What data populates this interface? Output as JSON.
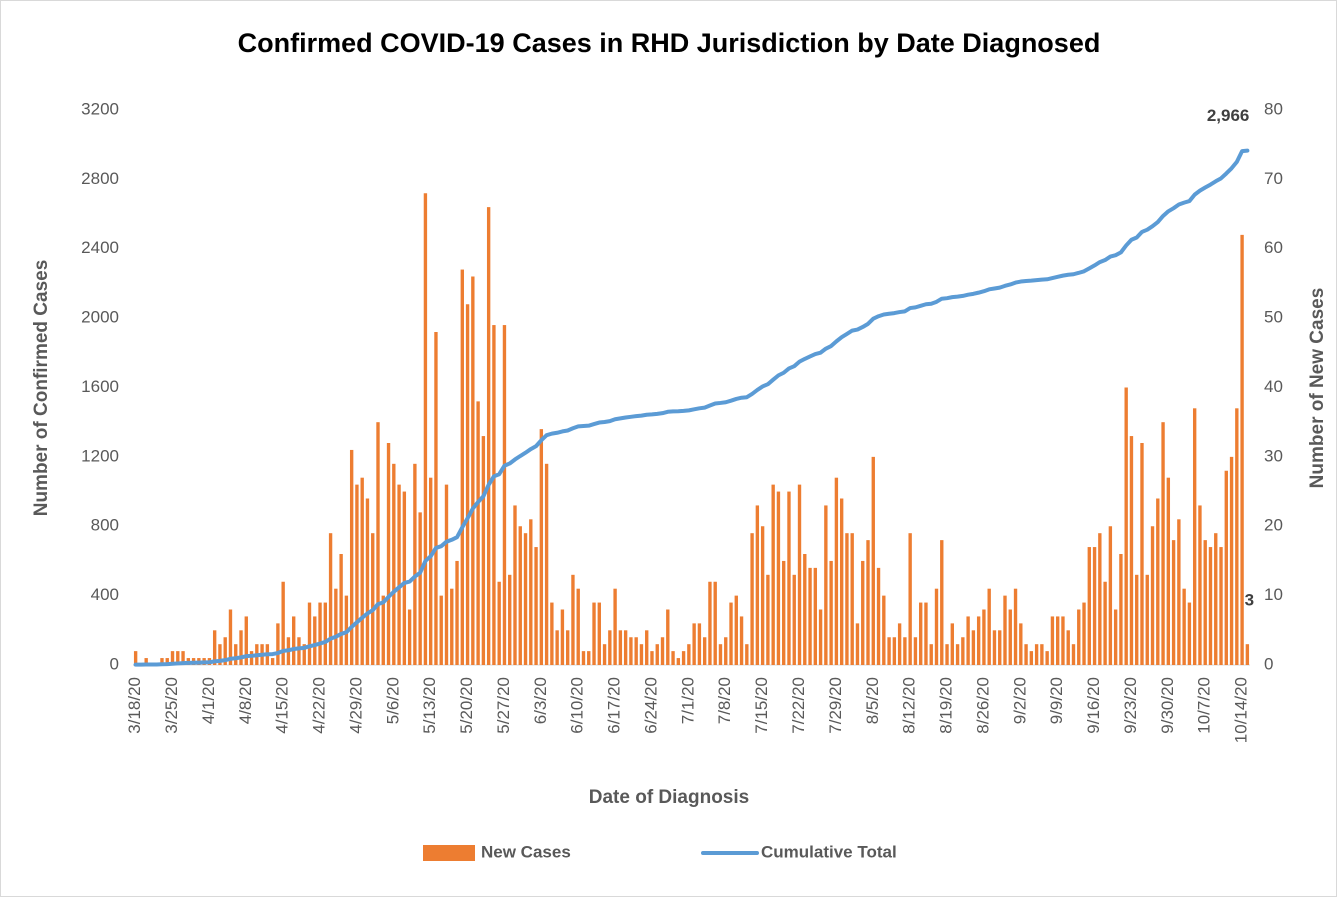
{
  "chart_data": {
    "type": "bar_line",
    "title": "Confirmed COVID-19 Cases in RHD Jurisdiction by Date Diagnosed",
    "x_label": "Date of Diagnosis",
    "y_label": "Number of Confirmed Cases",
    "y2_label": "Number of New Cases",
    "categories": [
      "3/18/20",
      null,
      null,
      null,
      null,
      null,
      null,
      "3/25/20",
      null,
      null,
      null,
      null,
      null,
      null,
      "4/1/20",
      null,
      null,
      null,
      null,
      null,
      null,
      "4/8/20",
      null,
      null,
      null,
      null,
      null,
      null,
      "4/15/20",
      null,
      null,
      null,
      null,
      null,
      null,
      "4/22/20",
      null,
      null,
      null,
      null,
      null,
      null,
      "4/29/20",
      null,
      null,
      null,
      null,
      null,
      null,
      "5/6/20",
      null,
      null,
      null,
      null,
      null,
      null,
      "5/13/20",
      null,
      null,
      null,
      null,
      null,
      null,
      "5/20/20",
      null,
      null,
      null,
      null,
      null,
      null,
      "5/27/20",
      null,
      null,
      null,
      null,
      null,
      null,
      "6/3/20",
      null,
      null,
      null,
      null,
      null,
      null,
      "6/10/20",
      null,
      null,
      null,
      null,
      null,
      null,
      "6/17/20",
      null,
      null,
      null,
      null,
      null,
      null,
      "6/24/20",
      null,
      null,
      null,
      null,
      null,
      null,
      "7/1/20",
      null,
      null,
      null,
      null,
      null,
      null,
      "7/8/20",
      null,
      null,
      null,
      null,
      null,
      null,
      "7/15/20",
      null,
      null,
      null,
      null,
      null,
      null,
      "7/22/20",
      null,
      null,
      null,
      null,
      null,
      null,
      "7/29/20",
      null,
      null,
      null,
      null,
      null,
      null,
      "8/5/20",
      null,
      null,
      null,
      null,
      null,
      null,
      "8/12/20",
      null,
      null,
      null,
      null,
      null,
      null,
      "8/19/20",
      null,
      null,
      null,
      null,
      null,
      null,
      "8/26/20",
      null,
      null,
      null,
      null,
      null,
      null,
      "9/2/20",
      null,
      null,
      null,
      null,
      null,
      null,
      "9/9/20",
      null,
      null,
      null,
      null,
      null,
      null,
      "9/16/20",
      null,
      null,
      null,
      null,
      null,
      null,
      "9/23/20",
      null,
      null,
      null,
      null,
      null,
      null,
      "9/30/20",
      null,
      null,
      null,
      null,
      null,
      null,
      "10/7/20",
      null,
      null,
      null,
      null,
      null,
      null,
      "10/14/20",
      null
    ],
    "series": [
      {
        "name": "New Cases",
        "type": "bar",
        "axis": "y2",
        "color": "#ed7d31",
        "data_label": "last",
        "values": [
          2,
          0,
          1,
          0,
          0,
          1,
          1,
          2,
          2,
          2,
          1,
          1,
          1,
          1,
          1,
          5,
          3,
          4,
          8,
          3,
          5,
          7,
          2,
          3,
          3,
          3,
          1,
          6,
          12,
          4,
          7,
          4,
          3,
          9,
          7,
          9,
          9,
          19,
          11,
          16,
          10,
          31,
          26,
          27,
          24,
          19,
          35,
          10,
          32,
          29,
          26,
          25,
          8,
          29,
          22,
          68,
          27,
          48,
          10,
          26,
          11,
          15,
          57,
          52,
          56,
          38,
          33,
          66,
          49,
          12,
          49,
          13,
          23,
          20,
          19,
          21,
          17,
          34,
          29,
          9,
          5,
          8,
          5,
          13,
          11,
          2,
          2,
          9,
          9,
          3,
          5,
          11,
          5,
          5,
          4,
          4,
          3,
          5,
          2,
          3,
          4,
          8,
          2,
          1,
          2,
          3,
          6,
          6,
          4,
          12,
          12,
          3,
          4,
          9,
          10,
          7,
          3,
          19,
          23,
          20,
          13,
          26,
          25,
          15,
          25,
          13,
          26,
          16,
          14,
          14,
          8,
          23,
          15,
          27,
          24,
          19,
          19,
          6,
          15,
          18,
          30,
          14,
          10,
          4,
          4,
          6,
          4,
          19,
          4,
          9,
          9,
          3,
          11,
          18,
          3,
          6,
          3,
          4,
          7,
          5,
          7,
          8,
          11,
          5,
          5,
          10,
          8,
          11,
          6,
          3,
          2,
          3,
          3,
          2,
          7,
          7,
          7,
          5,
          3,
          8,
          9,
          17,
          17,
          19,
          12,
          20,
          8,
          16,
          40,
          33,
          13,
          32,
          13,
          20,
          24,
          35,
          27,
          18,
          21,
          11,
          9,
          37,
          23,
          18,
          17,
          19,
          17,
          28,
          30,
          37,
          62,
          3
        ]
      },
      {
        "name": "Cumulative Total",
        "type": "line",
        "axis": "y",
        "color": "#5b9bd5",
        "values": [
          2,
          2,
          3,
          3,
          3,
          4,
          5,
          7,
          9,
          11,
          12,
          13,
          14,
          15,
          16,
          21,
          24,
          28,
          36,
          39,
          44,
          51,
          53,
          56,
          59,
          62,
          63,
          69,
          81,
          85,
          92,
          96,
          99,
          108,
          115,
          124,
          133,
          152,
          163,
          179,
          189,
          220,
          246,
          273,
          297,
          316,
          351,
          361,
          393,
          422,
          448,
          473,
          481,
          510,
          532,
          600,
          627,
          675,
          685,
          711,
          722,
          737,
          794,
          846,
          902,
          940,
          973,
          1039,
          1088,
          1100,
          1149,
          1162,
          1185,
          1205,
          1224,
          1245,
          1262,
          1296,
          1325,
          1334,
          1339,
          1347,
          1352,
          1365,
          1376,
          1378,
          1380,
          1389,
          1398,
          1401,
          1406,
          1417,
          1422,
          1427,
          1431,
          1435,
          1438,
          1443,
          1445,
          1448,
          1452,
          1460,
          1462,
          1463,
          1465,
          1468,
          1474,
          1480,
          1484,
          1496,
          1508,
          1511,
          1515,
          1524,
          1534,
          1541,
          1544,
          1563,
          1586,
          1606,
          1619,
          1645,
          1670,
          1685,
          1710,
          1723,
          1749,
          1765,
          1779,
          1793,
          1801,
          1824,
          1839,
          1866,
          1890,
          1909,
          1928,
          1934,
          1949,
          1967,
          1997,
          2011,
          2021,
          2025,
          2029,
          2035,
          2039,
          2058,
          2062,
          2071,
          2080,
          2083,
          2094,
          2112,
          2115,
          2121,
          2124,
          2128,
          2135,
          2140,
          2147,
          2155,
          2166,
          2171,
          2176,
          2186,
          2194,
          2205,
          2211,
          2214,
          2216,
          2219,
          2222,
          2224,
          2231,
          2238,
          2245,
          2250,
          2253,
          2261,
          2270,
          2287,
          2304,
          2323,
          2335,
          2355,
          2363,
          2379,
          2419,
          2452,
          2465,
          2497,
          2510,
          2530,
          2554,
          2589,
          2616,
          2634,
          2655,
          2666,
          2675,
          2712,
          2735,
          2753,
          2770,
          2789,
          2806,
          2834,
          2864,
          2901,
          2963,
          2966
        ],
        "value_labels": [
          null,
          null,
          null,
          null,
          null,
          null,
          null,
          null,
          null,
          null,
          null,
          null,
          null,
          null,
          null,
          null,
          null,
          null,
          null,
          null,
          null,
          null,
          null,
          null,
          null,
          null,
          null,
          null,
          null,
          null,
          null,
          null,
          null,
          null,
          null,
          null,
          null,
          null,
          null,
          null,
          null,
          null,
          null,
          null,
          null,
          null,
          null,
          null,
          null,
          null,
          null,
          null,
          null,
          null,
          null,
          null,
          null,
          null,
          null,
          null,
          null,
          null,
          null,
          null,
          null,
          null,
          null,
          null,
          null,
          null,
          null,
          null,
          null,
          null,
          null,
          null,
          null,
          null,
          null,
          null,
          null,
          null,
          null,
          null,
          null,
          null,
          null,
          null,
          null,
          null,
          null,
          null,
          null,
          null,
          null,
          null,
          null,
          null,
          null,
          null,
          null,
          null,
          null,
          null,
          null,
          null,
          null,
          null,
          null,
          null,
          null,
          null,
          null,
          null,
          null,
          null,
          null,
          null,
          null,
          null,
          null,
          null,
          null,
          null,
          null,
          null,
          null,
          null,
          null,
          null,
          null,
          null,
          null,
          null,
          null,
          null,
          null,
          null,
          null,
          null,
          null,
          null,
          null,
          null,
          null,
          null,
          null,
          null,
          null,
          null,
          null,
          null,
          null,
          null,
          null,
          null,
          null,
          null,
          null,
          null,
          null,
          null,
          null,
          null,
          null,
          null,
          null,
          null,
          null,
          null,
          null,
          null,
          null,
          null,
          null,
          null,
          null,
          null,
          null,
          null,
          null,
          null,
          null,
          null,
          null,
          null,
          null,
          null,
          null,
          null,
          null,
          null,
          null,
          null,
          null,
          null,
          null,
          null,
          null,
          null,
          null,
          null,
          null,
          null,
          null,
          null,
          null,
          null,
          null,
          null,
          null,
          "2,966"
        ]
      }
    ],
    "ylim": [
      0,
      3200
    ],
    "yticks": [
      0,
      400,
      800,
      1200,
      1600,
      2000,
      2400,
      2800,
      3200
    ],
    "y2lim": [
      0,
      80
    ],
    "y2ticks": [
      0,
      10,
      20,
      30,
      40,
      50,
      60,
      70,
      80
    ],
    "grid": false,
    "legend": "bottom"
  }
}
